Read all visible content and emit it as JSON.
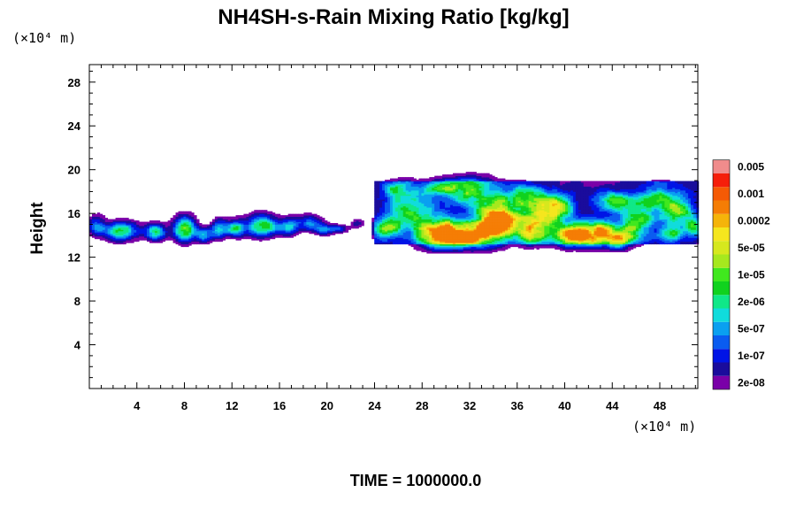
{
  "chart_data": {
    "type": "contour",
    "title": "NH4SH-s-Rain Mixing Ratio [kg/kg]",
    "ylabel": "Height",
    "y_unit": "(×10⁴ m)",
    "x_unit": "(×10⁴ m)",
    "xlim": [
      0,
      51.2
    ],
    "ylim": [
      0,
      29.6
    ],
    "x_ticks": [
      4,
      8,
      12,
      16,
      20,
      24,
      28,
      32,
      36,
      40,
      44,
      48
    ],
    "y_ticks": [
      4,
      8,
      12,
      16,
      20,
      24,
      28
    ],
    "footer": "TIME = 1000000.0",
    "colorbar": {
      "levels": [
        {
          "color": "#7a00a8",
          "label": "2e-08"
        },
        {
          "color": "#1a0c9c",
          "label": ""
        },
        {
          "color": "#0014e6",
          "label": "1e-07"
        },
        {
          "color": "#0a5cf0",
          "label": ""
        },
        {
          "color": "#0aa0f0",
          "label": "5e-07"
        },
        {
          "color": "#10dcdc",
          "label": ""
        },
        {
          "color": "#10e888",
          "label": "2e-06"
        },
        {
          "color": "#10d21e",
          "label": ""
        },
        {
          "color": "#40e81e",
          "label": "1e-05"
        },
        {
          "color": "#a6e81e",
          "label": ""
        },
        {
          "color": "#d6e81e",
          "label": "5e-05"
        },
        {
          "color": "#f5e61e",
          "label": ""
        },
        {
          "color": "#f5b40a",
          "label": "0.0002"
        },
        {
          "color": "#f57d05",
          "label": ""
        },
        {
          "color": "#f55a05",
          "label": "0.001"
        },
        {
          "color": "#f51e0a",
          "label": ""
        },
        {
          "color": "#f08c8c",
          "label": "0.005"
        }
      ]
    },
    "cloud_regions": [
      {
        "x_range": [
          0,
          12.4
        ],
        "y_range": [
          13.2,
          16.2
        ],
        "peak_level": 11
      },
      {
        "x_range": [
          12.4,
          23.2
        ],
        "y_range": [
          13.6,
          16.3
        ],
        "peak_level": 9
      },
      {
        "x_range": [
          23.8,
          51.2
        ],
        "y_range": [
          12.6,
          19.4
        ],
        "peak_level": 13
      }
    ]
  }
}
